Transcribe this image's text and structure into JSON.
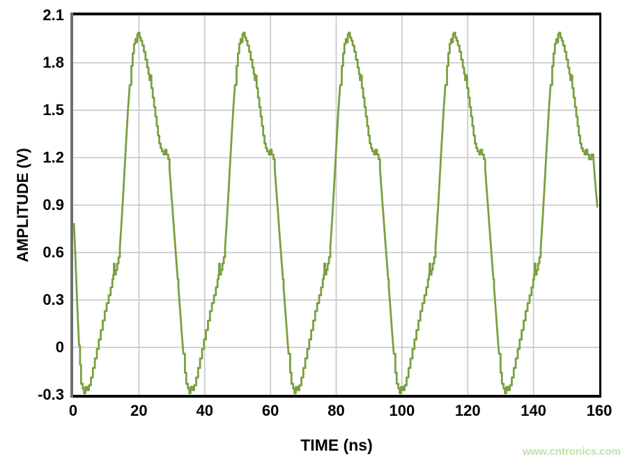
{
  "page": {
    "background_color": "#ffffff",
    "text_color": "#000000"
  },
  "watermark": {
    "text": "www.cntronics.com",
    "color": "#bce3a9"
  },
  "chart_data": {
    "type": "line",
    "title": "",
    "xlabel": "TIME (ns)",
    "ylabel": "AMPLITUDE (V)",
    "xlim": [
      0,
      160
    ],
    "ylim": [
      -0.3,
      2.1
    ],
    "grid": true,
    "legend": "none",
    "line_color": "#7a9f40",
    "grid_color": "#cbcbcb",
    "border_color": "#000000",
    "left_spine_color": "#6e6e6e",
    "x_ticks": [
      {
        "v": 0,
        "label": "0"
      },
      {
        "v": 20,
        "label": "20"
      },
      {
        "v": 40,
        "label": "40"
      },
      {
        "v": 60,
        "label": "60"
      },
      {
        "v": 80,
        "label": "80"
      },
      {
        "v": 100,
        "label": "100"
      },
      {
        "v": 120,
        "label": "120"
      },
      {
        "v": 140,
        "label": "140"
      },
      {
        "v": 160,
        "label": "160"
      }
    ],
    "y_ticks": [
      {
        "v": 2.1,
        "label": "2.1"
      },
      {
        "v": 1.8,
        "label": "1.8"
      },
      {
        "v": 1.5,
        "label": "1.5"
      },
      {
        "v": 1.2,
        "label": "1.2"
      },
      {
        "v": 0.9,
        "label": "0.9"
      },
      {
        "v": 0.6,
        "label": "0.6"
      },
      {
        "v": 0.3,
        "label": "0.3"
      },
      {
        "v": 0,
        "label": "0"
      },
      {
        "v": -0.3,
        "label": "-0.3"
      }
    ],
    "period_ns": 32,
    "waveform": {
      "cycles": 5,
      "template_start_t": 2.4,
      "template_end_t": 157.2,
      "step_quantize_v": 0.13,
      "lead_in": [
        [
          0.25,
          0.78
        ],
        [
          0.6,
          0.62
        ],
        [
          1.0,
          0.4
        ],
        [
          1.4,
          0.19
        ],
        [
          1.8,
          0.01
        ],
        [
          2.1,
          -0.11
        ]
      ],
      "cycle_template": [
        [
          0.0,
          0.38
        ],
        [
          0.5,
          0.24
        ],
        [
          1.0,
          0.1
        ],
        [
          1.5,
          -0.04
        ],
        [
          2.0,
          -0.16
        ],
        [
          2.4,
          -0.23
        ],
        [
          2.9,
          -0.26
        ],
        [
          3.3,
          -0.29
        ],
        [
          3.7,
          -0.25
        ],
        [
          4.3,
          -0.27
        ],
        [
          4.8,
          -0.24
        ],
        [
          5.4,
          -0.19
        ],
        [
          6.0,
          -0.13
        ],
        [
          6.6,
          -0.07
        ],
        [
          7.2,
          -0.01
        ],
        [
          7.8,
          0.05
        ],
        [
          8.4,
          0.11
        ],
        [
          9.0,
          0.17
        ],
        [
          9.6,
          0.23
        ],
        [
          10.2,
          0.28
        ],
        [
          10.8,
          0.33
        ],
        [
          11.4,
          0.38
        ],
        [
          11.9,
          0.43
        ],
        [
          12.2,
          0.46
        ],
        [
          12.4,
          0.53
        ],
        [
          12.6,
          0.46
        ],
        [
          13.0,
          0.49
        ],
        [
          13.4,
          0.53
        ],
        [
          13.8,
          0.57
        ],
        [
          14.2,
          0.63
        ],
        [
          14.7,
          0.79
        ],
        [
          15.2,
          0.96
        ],
        [
          15.7,
          1.15
        ],
        [
          16.2,
          1.33
        ],
        [
          16.7,
          1.51
        ],
        [
          17.2,
          1.66
        ],
        [
          17.7,
          1.78
        ],
        [
          18.1,
          1.86
        ],
        [
          18.5,
          1.92
        ],
        [
          18.9,
          1.95
        ],
        [
          19.2,
          1.93
        ],
        [
          19.5,
          1.98
        ],
        [
          19.8,
          1.99
        ],
        [
          20.2,
          1.96
        ],
        [
          20.6,
          1.94
        ],
        [
          21.0,
          1.91
        ],
        [
          21.5,
          1.87
        ],
        [
          22.0,
          1.82
        ],
        [
          22.5,
          1.77
        ],
        [
          22.9,
          1.73
        ],
        [
          23.2,
          1.69
        ],
        [
          23.5,
          1.72
        ],
        [
          23.8,
          1.64
        ],
        [
          24.2,
          1.58
        ],
        [
          24.6,
          1.52
        ],
        [
          25.0,
          1.46
        ],
        [
          25.4,
          1.4
        ],
        [
          25.8,
          1.34
        ],
        [
          26.2,
          1.29
        ],
        [
          26.6,
          1.26
        ],
        [
          27.0,
          1.24
        ],
        [
          27.5,
          1.22
        ],
        [
          27.9,
          1.25
        ],
        [
          28.4,
          1.22
        ],
        [
          28.9,
          1.19
        ],
        [
          29.3,
          1.13
        ],
        [
          29.8,
          0.99
        ],
        [
          30.3,
          0.85
        ],
        [
          30.8,
          0.71
        ],
        [
          31.3,
          0.57
        ],
        [
          31.8,
          0.43
        ]
      ],
      "tail": [
        [
          157.6,
          1.22
        ],
        [
          158.2,
          1.2
        ],
        [
          158.8,
          1.04
        ],
        [
          159.4,
          0.89
        ]
      ]
    }
  }
}
